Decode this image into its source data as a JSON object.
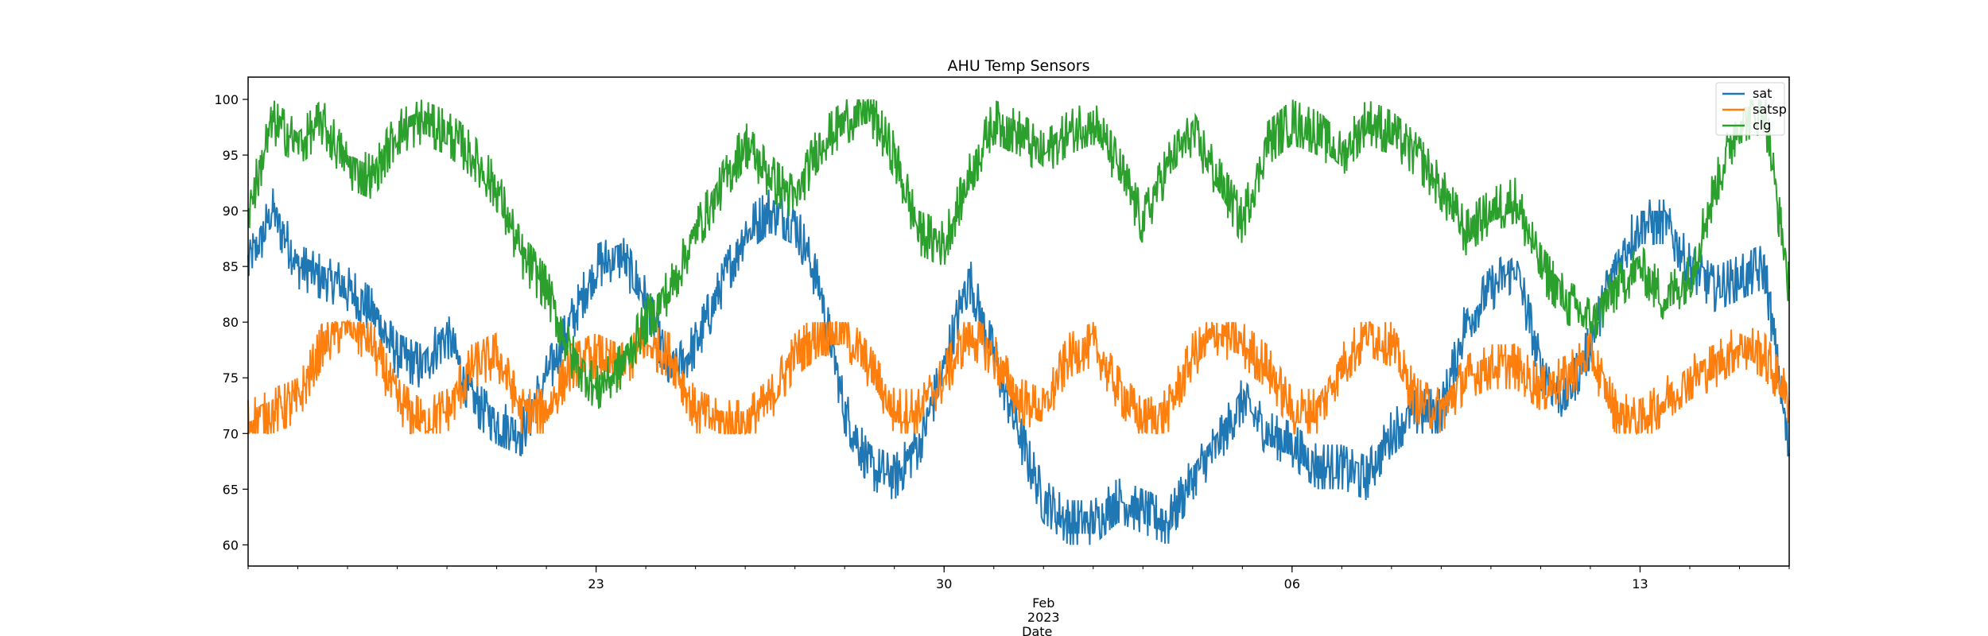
{
  "chart_data": {
    "type": "line",
    "title": "AHU Temp Sensors",
    "xlabel": "Date",
    "ylabel": "",
    "x_range": [
      "2023-01-16",
      "2023-02-16"
    ],
    "ylim": [
      58.1,
      102.0
    ],
    "y_ticks": [
      60,
      65,
      70,
      75,
      80,
      85,
      90,
      95,
      100
    ],
    "x_ticks": [
      {
        "date": "2023-01-23",
        "label": "23"
      },
      {
        "date": "2023-01-30",
        "label": "30"
      },
      {
        "date": "2023-02-06",
        "label": "06"
      },
      {
        "date": "2023-02-13",
        "label": "13"
      }
    ],
    "x_month_label": "Feb",
    "x_year_label": "2023",
    "grid": false,
    "legend_position": "top-right",
    "series": [
      {
        "name": "sat",
        "color": "#1f77b4",
        "points": [
          [
            "2023-01-16",
            85
          ],
          [
            "2023-01-16T12",
            90
          ],
          [
            "2023-01-17",
            85
          ],
          [
            "2023-01-17T12",
            84
          ],
          [
            "2023-01-18",
            83
          ],
          [
            "2023-01-18T12",
            81
          ],
          [
            "2023-01-19",
            77
          ],
          [
            "2023-01-19T12",
            76
          ],
          [
            "2023-01-20",
            79
          ],
          [
            "2023-01-20T12",
            73
          ],
          [
            "2023-01-21",
            71
          ],
          [
            "2023-01-21T12",
            70
          ],
          [
            "2023-01-22",
            75
          ],
          [
            "2023-01-22T12",
            80
          ],
          [
            "2023-01-23",
            85
          ],
          [
            "2023-01-23T12",
            86
          ],
          [
            "2023-01-24",
            82
          ],
          [
            "2023-01-24T12",
            75
          ],
          [
            "2023-01-25",
            78
          ],
          [
            "2023-01-25T12",
            83
          ],
          [
            "2023-01-26",
            88
          ],
          [
            "2023-01-26T12",
            90
          ],
          [
            "2023-01-27",
            89
          ],
          [
            "2023-01-27T12",
            83
          ],
          [
            "2023-01-28",
            72
          ],
          [
            "2023-01-28T12",
            67
          ],
          [
            "2023-01-29",
            66
          ],
          [
            "2023-01-29T12",
            69
          ],
          [
            "2023-01-30",
            76
          ],
          [
            "2023-01-30T12",
            84
          ],
          [
            "2023-01-31",
            77
          ],
          [
            "2023-01-31T12",
            70
          ],
          [
            "2023-02-01",
            64
          ],
          [
            "2023-02-01T12",
            62
          ],
          [
            "2023-02-02",
            62
          ],
          [
            "2023-02-02T12",
            64
          ],
          [
            "2023-02-03",
            63
          ],
          [
            "2023-02-03T12",
            62
          ],
          [
            "2023-02-04",
            66
          ],
          [
            "2023-02-04T12",
            69
          ],
          [
            "2023-02-05",
            73
          ],
          [
            "2023-02-05T12",
            70
          ],
          [
            "2023-02-06",
            69
          ],
          [
            "2023-02-06T12",
            67
          ],
          [
            "2023-02-07",
            67
          ],
          [
            "2023-02-07T12",
            66
          ],
          [
            "2023-02-08",
            70
          ],
          [
            "2023-02-08T12",
            72
          ],
          [
            "2023-02-09",
            72
          ],
          [
            "2023-02-09T12",
            80
          ],
          [
            "2023-02-10",
            83
          ],
          [
            "2023-02-10T12",
            85
          ],
          [
            "2023-02-11",
            76
          ],
          [
            "2023-02-11T12",
            73
          ],
          [
            "2023-02-12",
            78
          ],
          [
            "2023-02-12T12",
            85
          ],
          [
            "2023-02-13",
            89
          ],
          [
            "2023-02-13T12",
            89
          ],
          [
            "2023-02-14",
            85
          ],
          [
            "2023-02-14T12",
            83
          ],
          [
            "2023-02-15",
            84
          ],
          [
            "2023-02-15T12",
            85
          ],
          [
            "2023-02-16",
            68
          ]
        ]
      },
      {
        "name": "satsp",
        "color": "#ff7f0e",
        "points": [
          [
            "2023-01-16",
            71
          ],
          [
            "2023-01-16T12",
            72
          ],
          [
            "2023-01-17",
            73
          ],
          [
            "2023-01-17T12",
            78
          ],
          [
            "2023-01-18",
            80
          ],
          [
            "2023-01-18T12",
            78
          ],
          [
            "2023-01-19",
            73
          ],
          [
            "2023-01-19T12",
            71
          ],
          [
            "2023-01-20",
            72
          ],
          [
            "2023-01-20T12",
            76
          ],
          [
            "2023-01-21",
            77
          ],
          [
            "2023-01-21T12",
            72
          ],
          [
            "2023-01-22",
            72
          ],
          [
            "2023-01-22T12",
            76
          ],
          [
            "2023-01-23",
            77
          ],
          [
            "2023-01-23T12",
            76
          ],
          [
            "2023-01-24",
            78
          ],
          [
            "2023-01-24T12",
            77
          ],
          [
            "2023-01-25",
            72
          ],
          [
            "2023-01-25T12",
            71
          ],
          [
            "2023-01-26",
            71
          ],
          [
            "2023-01-26T12",
            73
          ],
          [
            "2023-01-27",
            77
          ],
          [
            "2023-01-27T12",
            79
          ],
          [
            "2023-01-28",
            79
          ],
          [
            "2023-01-28T12",
            76
          ],
          [
            "2023-01-29",
            72
          ],
          [
            "2023-01-29T12",
            72
          ],
          [
            "2023-01-30",
            75
          ],
          [
            "2023-01-30T12",
            79
          ],
          [
            "2023-01-31",
            77
          ],
          [
            "2023-01-31T12",
            73
          ],
          [
            "2023-02-01",
            72
          ],
          [
            "2023-02-01T12",
            77
          ],
          [
            "2023-02-02",
            78
          ],
          [
            "2023-02-02T12",
            74
          ],
          [
            "2023-02-03",
            71
          ],
          [
            "2023-02-03T12",
            72
          ],
          [
            "2023-02-04",
            77
          ],
          [
            "2023-02-04T12",
            79
          ],
          [
            "2023-02-05",
            78
          ],
          [
            "2023-02-05T12",
            76
          ],
          [
            "2023-02-06",
            72
          ],
          [
            "2023-02-06T12",
            72
          ],
          [
            "2023-02-07",
            76
          ],
          [
            "2023-02-07T12",
            79
          ],
          [
            "2023-02-08",
            78
          ],
          [
            "2023-02-08T12",
            73
          ],
          [
            "2023-02-09",
            72
          ],
          [
            "2023-02-09T12",
            75
          ],
          [
            "2023-02-10",
            76
          ],
          [
            "2023-02-10T12",
            76
          ],
          [
            "2023-02-11",
            74
          ],
          [
            "2023-02-11T12",
            75
          ],
          [
            "2023-02-12",
            77
          ],
          [
            "2023-02-12T12",
            72
          ],
          [
            "2023-02-13",
            71
          ],
          [
            "2023-02-13T12",
            73
          ],
          [
            "2023-02-14",
            75
          ],
          [
            "2023-02-14T12",
            76
          ],
          [
            "2023-02-15",
            78
          ],
          [
            "2023-02-15T12",
            77
          ],
          [
            "2023-02-16",
            73
          ]
        ]
      },
      {
        "name": "clg",
        "color": "#2ca02c",
        "points": [
          [
            "2023-01-16",
            90
          ],
          [
            "2023-01-16T12",
            98
          ],
          [
            "2023-01-17",
            96
          ],
          [
            "2023-01-17T12",
            98
          ],
          [
            "2023-01-18",
            94
          ],
          [
            "2023-01-18T12",
            93
          ],
          [
            "2023-01-19",
            97
          ],
          [
            "2023-01-19T12",
            98
          ],
          [
            "2023-01-20",
            97
          ],
          [
            "2023-01-20T12",
            95
          ],
          [
            "2023-01-21",
            92
          ],
          [
            "2023-01-21T12",
            86
          ],
          [
            "2023-01-22",
            83
          ],
          [
            "2023-01-22T12",
            77
          ],
          [
            "2023-01-23",
            74
          ],
          [
            "2023-01-23T12",
            76
          ],
          [
            "2023-01-24",
            80
          ],
          [
            "2023-01-24T12",
            83
          ],
          [
            "2023-01-25",
            88
          ],
          [
            "2023-01-25T12",
            92
          ],
          [
            "2023-01-26",
            96
          ],
          [
            "2023-01-26T12",
            93
          ],
          [
            "2023-01-27",
            91
          ],
          [
            "2023-01-27T12",
            96
          ],
          [
            "2023-01-28",
            98
          ],
          [
            "2023-01-28T12",
            99
          ],
          [
            "2023-01-29",
            95
          ],
          [
            "2023-01-29T12",
            88
          ],
          [
            "2023-01-30",
            87
          ],
          [
            "2023-01-30T12",
            93
          ],
          [
            "2023-01-31",
            98
          ],
          [
            "2023-01-31T12",
            97
          ],
          [
            "2023-02-01",
            95
          ],
          [
            "2023-02-01T12",
            97
          ],
          [
            "2023-02-02",
            98
          ],
          [
            "2023-02-02T12",
            94
          ],
          [
            "2023-02-03",
            89
          ],
          [
            "2023-02-03T12",
            94
          ],
          [
            "2023-02-04",
            97
          ],
          [
            "2023-02-04T12",
            93
          ],
          [
            "2023-02-05",
            89
          ],
          [
            "2023-02-05T12",
            96
          ],
          [
            "2023-02-06",
            98
          ],
          [
            "2023-02-06T12",
            97
          ],
          [
            "2023-02-07",
            95
          ],
          [
            "2023-02-07T12",
            98
          ],
          [
            "2023-02-08",
            97
          ],
          [
            "2023-02-08T12",
            95
          ],
          [
            "2023-02-09",
            92
          ],
          [
            "2023-02-09T12",
            88
          ],
          [
            "2023-02-10",
            90
          ],
          [
            "2023-02-10T12",
            91
          ],
          [
            "2023-02-11",
            85
          ],
          [
            "2023-02-11T12",
            82
          ],
          [
            "2023-02-12",
            80
          ],
          [
            "2023-02-12T12",
            83
          ],
          [
            "2023-02-13",
            85
          ],
          [
            "2023-02-13T12",
            82
          ],
          [
            "2023-02-14",
            84
          ],
          [
            "2023-02-14T12",
            92
          ],
          [
            "2023-02-15",
            98
          ],
          [
            "2023-02-15T12",
            99
          ],
          [
            "2023-02-16",
            83
          ]
        ]
      }
    ]
  }
}
